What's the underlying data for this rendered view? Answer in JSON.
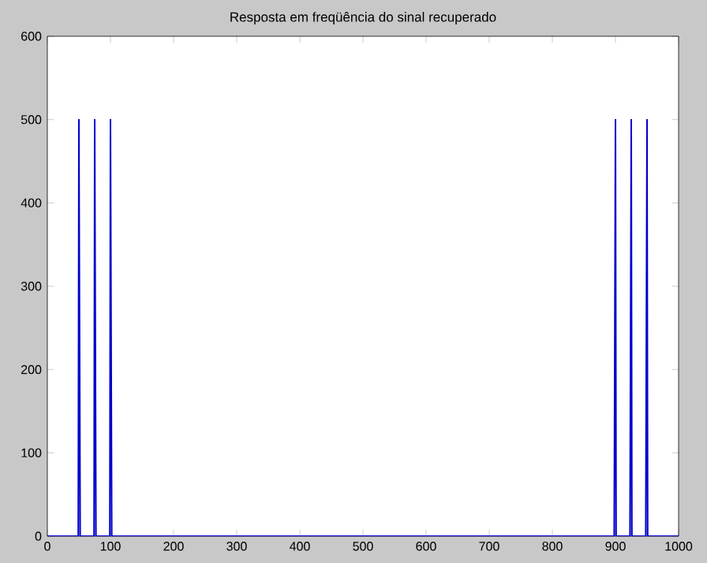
{
  "chart_data": {
    "type": "line",
    "title": "Resposta em freqüência do sinal recuperado",
    "x": [
      0,
      49,
      50,
      51,
      52,
      74,
      75,
      76,
      77,
      99,
      100,
      101,
      102,
      898,
      899,
      900,
      901,
      923,
      924,
      925,
      926,
      948,
      949,
      950,
      951,
      1000
    ],
    "series": [
      {
        "color": "#0000cc",
        "values": [
          0,
          0,
          500,
          250,
          0,
          0,
          500,
          250,
          0,
          0,
          500,
          250,
          0,
          0,
          250,
          500,
          0,
          0,
          250,
          500,
          0,
          0,
          250,
          500,
          0,
          0
        ]
      }
    ],
    "xlim": [
      0,
      1000
    ],
    "ylim": [
      0,
      600
    ],
    "xticks": [
      0,
      100,
      200,
      300,
      400,
      500,
      600,
      700,
      800,
      900,
      1000
    ],
    "yticks": [
      0,
      100,
      200,
      300,
      400,
      500,
      600
    ],
    "marker": "none",
    "line_style": "solid"
  }
}
